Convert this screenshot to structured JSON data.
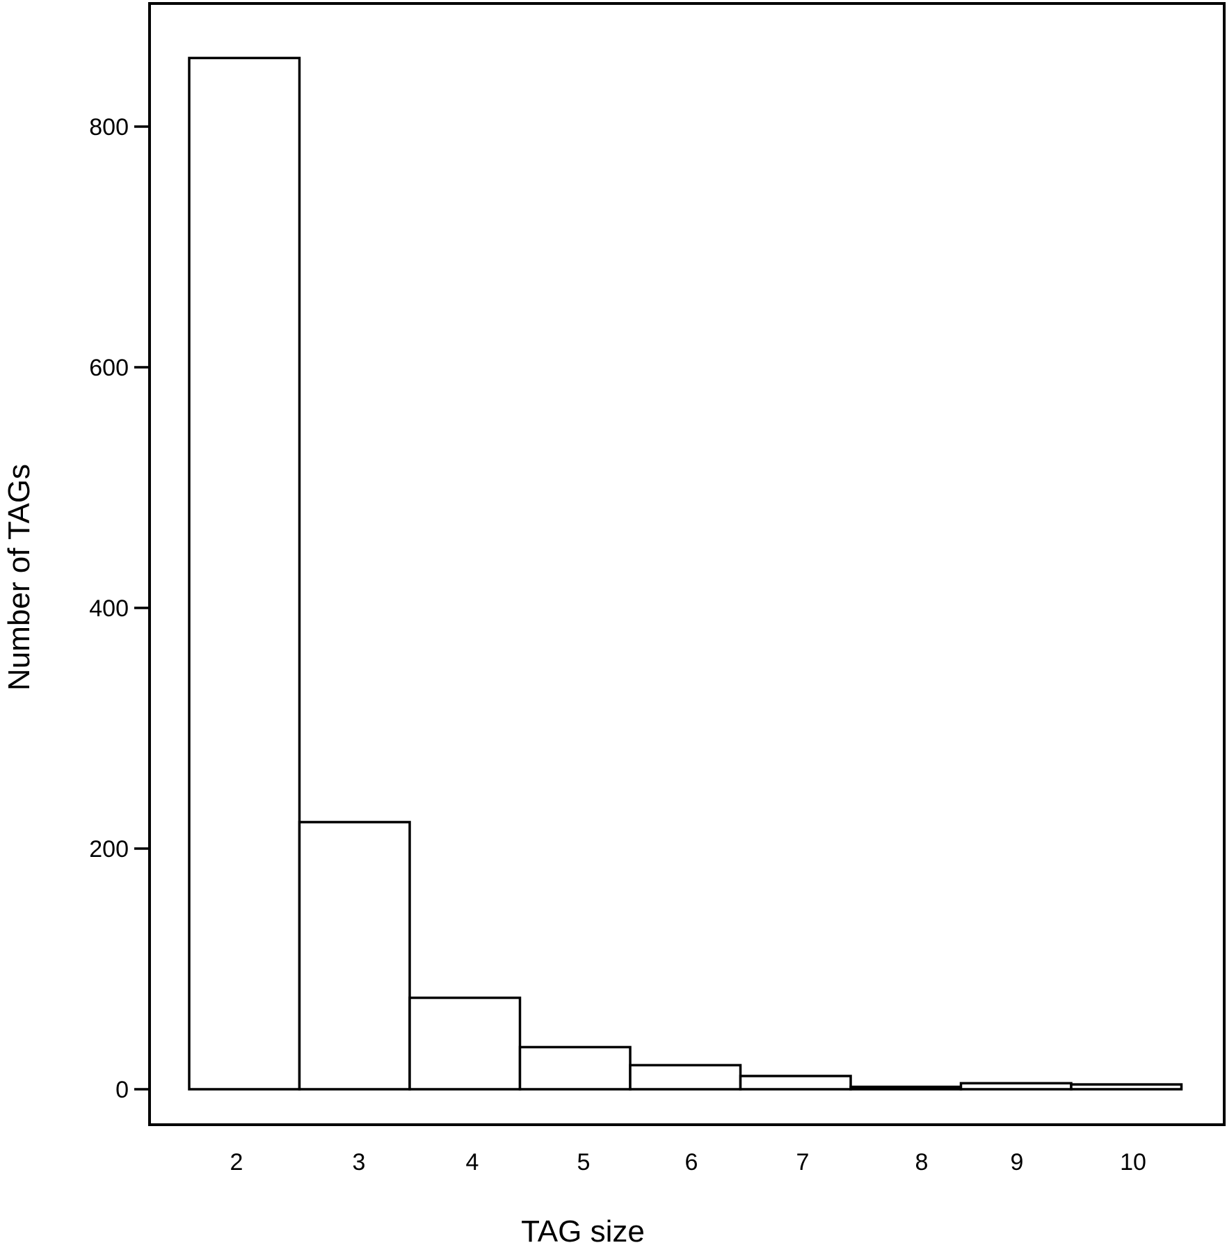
{
  "chart_data": {
    "type": "bar",
    "title": "",
    "xlabel": "TAG size",
    "ylabel": "Number of TAGs",
    "categories": [
      "2",
      "3",
      "4",
      "5",
      "6",
      "7",
      "8",
      "9",
      "10"
    ],
    "values": [
      857,
      222,
      76,
      35,
      20,
      11,
      2,
      5,
      4
    ],
    "ylim": [
      -30,
      900
    ],
    "yticks": [
      0,
      200,
      400,
      600,
      800
    ],
    "grid": false,
    "legend": "none",
    "colors": {
      "bar_fill": "#ffffff",
      "bar_stroke": "#000000",
      "background": "#ffffff"
    }
  }
}
